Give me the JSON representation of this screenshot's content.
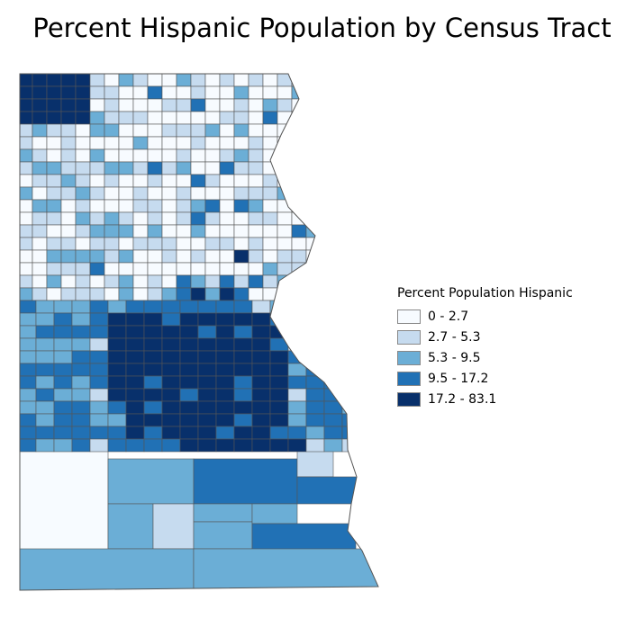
{
  "title": "Percent Hispanic Population by Census Tract",
  "legend": {
    "title": "Percent Population Hispanic",
    "classes": [
      {
        "label": "0 - 2.7",
        "color": "#f7fbff"
      },
      {
        "label": "2.7 - 5.3",
        "color": "#c6dbef"
      },
      {
        "label": "5.3 - 9.5",
        "color": "#6baed6"
      },
      {
        "label": "9.5 - 17.2",
        "color": "#2171b5"
      },
      {
        "label": "17.2 - 83.1",
        "color": "#08306b"
      }
    ]
  },
  "boundary_color": "#555555"
}
